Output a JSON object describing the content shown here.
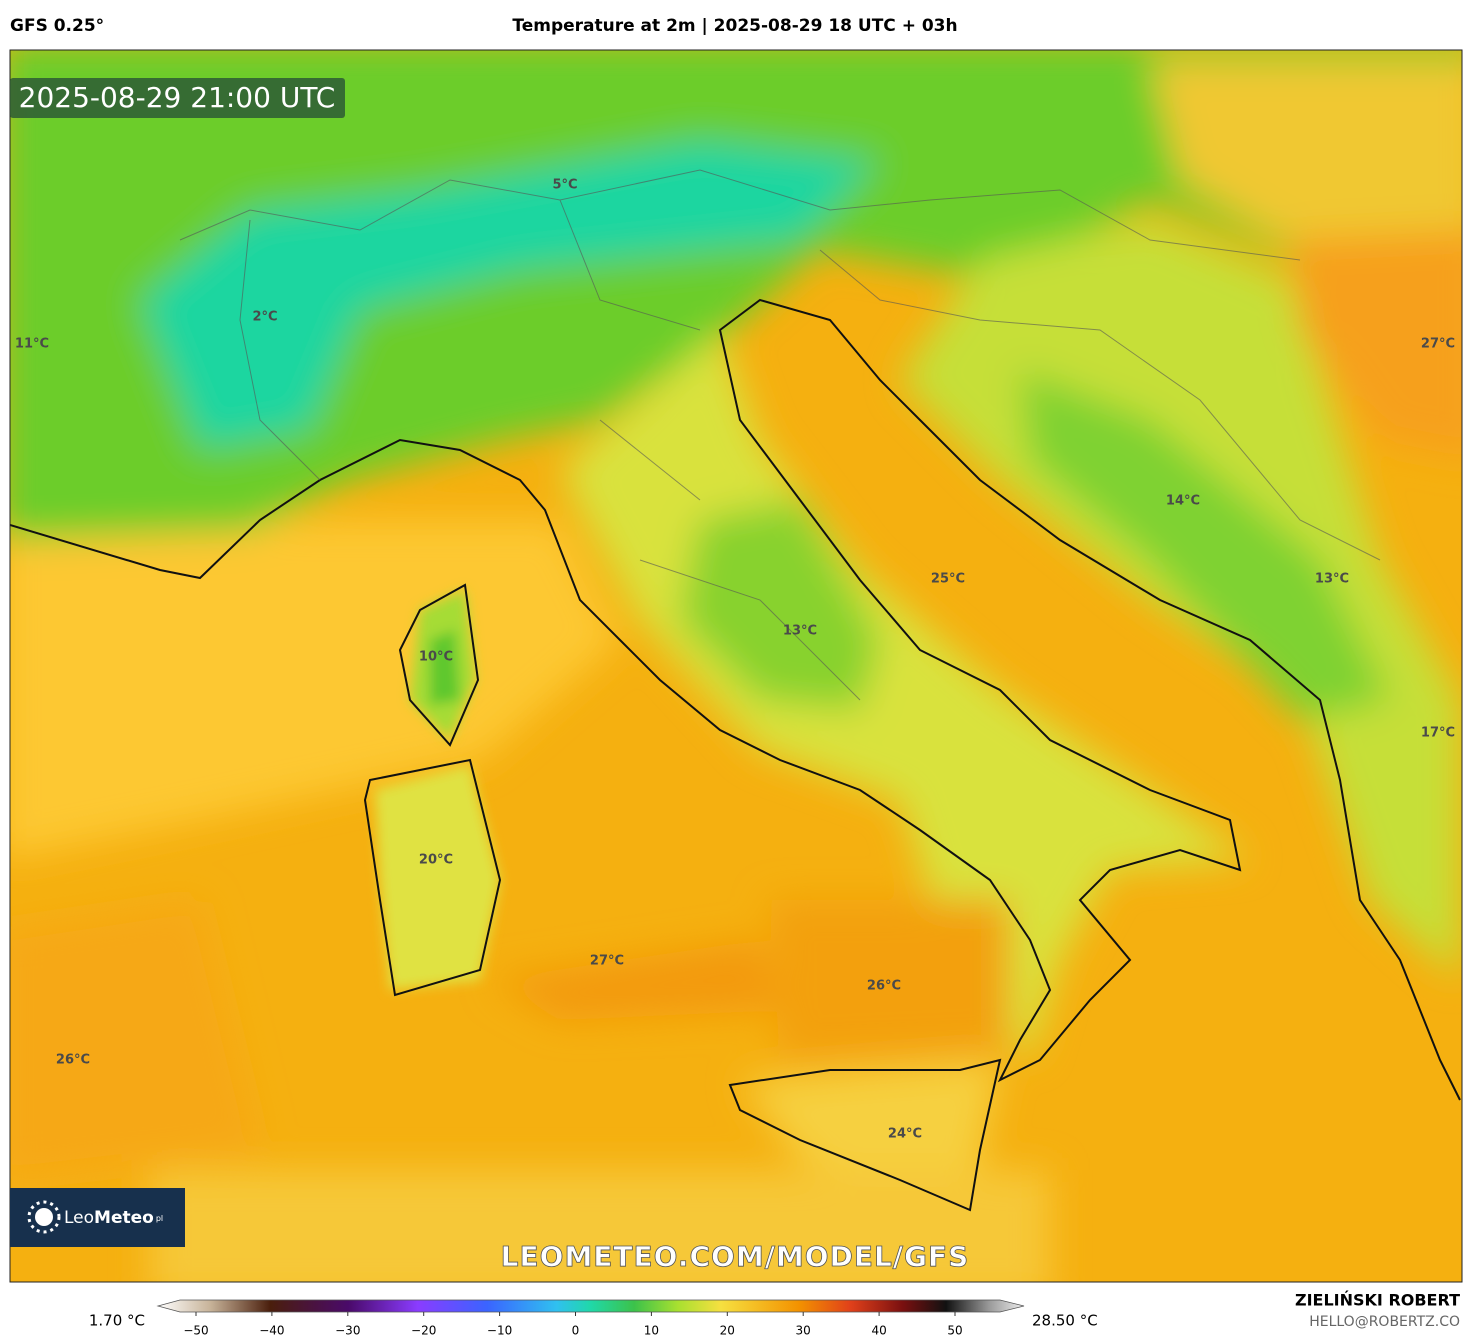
{
  "header": {
    "model": "GFS 0.25°",
    "title": "Temperature at 2m | 2025-08-29 18 UTC + 03h"
  },
  "map": {
    "timestamp": "2025-08-29 21:00 UTC",
    "labels": [
      "5°C",
      "2°C",
      "11°C",
      "27°C",
      "14°C",
      "13°C",
      "25°C",
      "10°C",
      "13°C",
      "17°C",
      "20°C",
      "27°C",
      "26°C",
      "26°C",
      "24°C"
    ],
    "watermark": "LEOMETEO.COM/MODEL/GFS",
    "logo": {
      "light": "Leo",
      "bold": "Meteo",
      "suffix": "pl"
    }
  },
  "colorbar": {
    "min_label": "1.70 °C",
    "max_label": "28.50 °C",
    "ticks": [
      {
        "value": -50,
        "label": "−50"
      },
      {
        "value": -40,
        "label": "−40"
      },
      {
        "value": -30,
        "label": "−30"
      },
      {
        "value": -20,
        "label": "−20"
      },
      {
        "value": -10,
        "label": "−10"
      },
      0,
      10,
      20,
      30,
      40,
      50
    ]
  },
  "footer": {
    "author": "ZIELIŃSKI ROBERT",
    "email": "HELLO@ROBERTZ.CO"
  }
}
